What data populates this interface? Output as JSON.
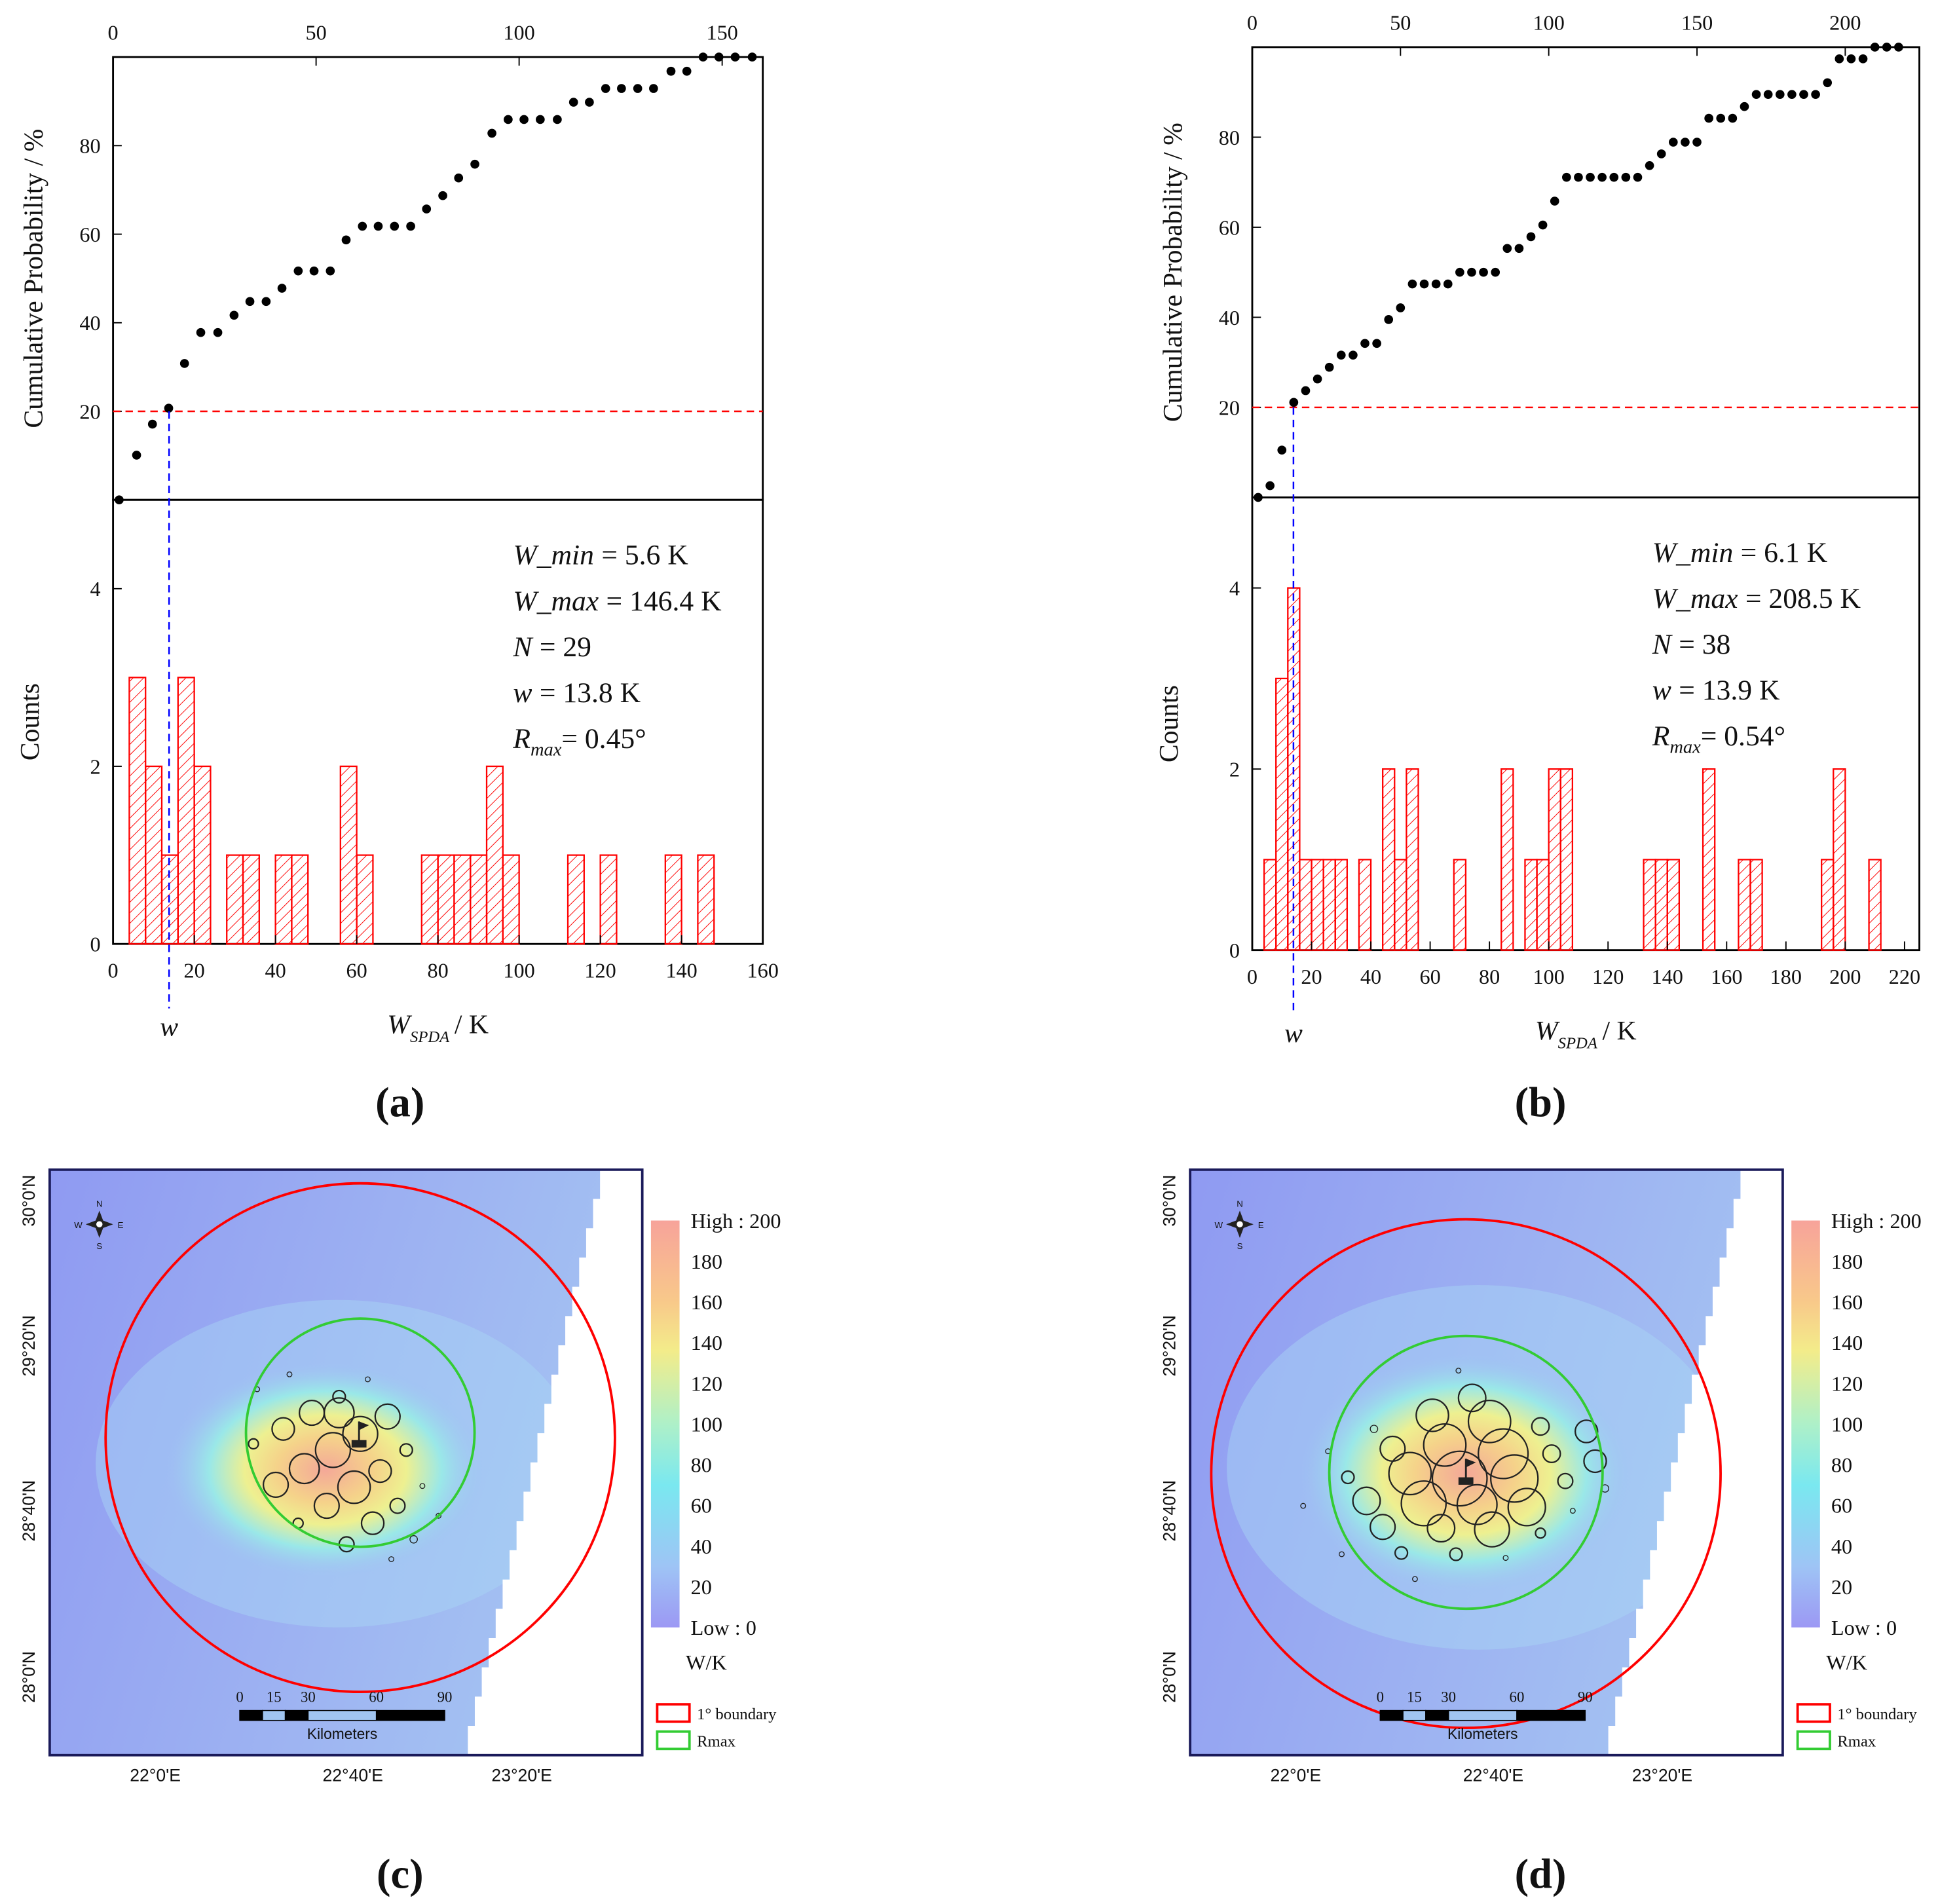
{
  "chart_data": [
    {
      "type": "scatter",
      "y_label": "Cumulative Probability / %",
      "color": "#000000",
      "x": [
        1.5,
        5.8,
        9.7,
        13.7,
        17.6,
        21.6,
        25.8,
        29.8,
        33.7,
        37.7,
        41.6,
        45.6,
        49.5,
        53.5,
        57.4,
        61.4,
        65.3,
        69.3,
        73.3,
        77.2,
        81.2,
        85.1,
        89.1,
        93.3,
        97.3,
        101.2,
        105.2,
        109.4,
        113.4,
        117.3,
        121.3,
        125.2,
        129.2,
        133.1,
        137.4,
        141.3,
        145.3,
        149.2,
        153.2,
        157.4
      ],
      "values": [
        0,
        10.1,
        17.1,
        20.7,
        30.8,
        37.8,
        37.8,
        41.7,
        44.8,
        44.8,
        47.8,
        51.7,
        51.7,
        51.7,
        58.7,
        61.8,
        61.8,
        61.8,
        61.8,
        65.7,
        68.7,
        72.7,
        75.8,
        82.8,
        85.9,
        85.9,
        85.9,
        85.9,
        89.8,
        89.8,
        92.9,
        92.9,
        92.9,
        92.9,
        96.8,
        96.8,
        100,
        100,
        100,
        100
      ],
      "xlim": [
        0,
        160
      ],
      "xticks": [
        0,
        50,
        100,
        150
      ],
      "ylim": [
        0,
        100
      ],
      "yticks": [
        20,
        40,
        60,
        80
      ],
      "reference_line": {
        "y": 20,
        "color": "#ff0000"
      }
    },
    {
      "type": "histogram",
      "y_label": "Counts",
      "x_label": [
        "W",
        "SPDA",
        "/ K"
      ],
      "color": "#ff0000",
      "bins": [
        4,
        8,
        12,
        16,
        20,
        24,
        28,
        32,
        36,
        40,
        44,
        48,
        52,
        56,
        60,
        64,
        68,
        72,
        76,
        80,
        84,
        88,
        92,
        96,
        100,
        104,
        108,
        112,
        116,
        120,
        124,
        128,
        132,
        136,
        140,
        144,
        148
      ],
      "values": [
        3,
        2,
        1,
        3,
        2,
        0,
        1,
        1,
        0,
        1,
        1,
        0,
        0,
        2,
        1,
        0,
        0,
        0,
        1,
        1,
        1,
        1,
        2,
        1,
        0,
        0,
        0,
        1,
        0,
        1,
        0,
        0,
        0,
        1,
        0,
        1
      ],
      "xlim": [
        0,
        160
      ],
      "xticks": [
        0,
        20,
        40,
        60,
        80,
        100,
        120,
        140,
        160
      ],
      "ylim": [
        0,
        5
      ],
      "yticks": [
        0,
        2,
        4
      ],
      "marker": {
        "x": 13.8,
        "label": "w",
        "color": "#0000ff"
      },
      "annotations": [
        [
          "W_min",
          "= 5.6 K"
        ],
        [
          "W_max",
          "= 146.4 K"
        ],
        [
          "N",
          "= 29"
        ],
        [
          "w",
          "= 13.8 K"
        ]
      ],
      "rmax": [
        "R",
        "max",
        "= 0.45°"
      ]
    },
    {
      "type": "scatter",
      "y_label": "Cumulative Probability / %",
      "color": "#000000",
      "x": [
        2,
        6,
        10,
        14,
        18,
        22,
        26,
        30,
        34,
        38,
        42,
        46,
        50,
        54,
        58,
        62,
        66,
        70,
        74,
        78,
        82,
        86,
        90,
        94,
        98,
        102,
        106,
        110,
        114,
        118,
        122,
        126,
        130,
        134,
        138,
        142,
        146,
        150,
        154,
        158,
        162,
        166,
        170,
        174,
        178,
        182,
        186,
        190,
        194,
        198,
        202,
        206,
        210,
        214,
        218
      ],
      "values": [
        0,
        2.6,
        10.5,
        21.1,
        23.7,
        26.3,
        28.9,
        31.6,
        31.6,
        34.2,
        34.2,
        39.5,
        42.1,
        47.4,
        47.4,
        47.4,
        47.4,
        50,
        50,
        50,
        50,
        55.3,
        55.3,
        57.9,
        60.5,
        65.8,
        71.1,
        71.1,
        71.1,
        71.1,
        71.1,
        71.1,
        71.1,
        73.7,
        76.3,
        78.9,
        78.9,
        78.9,
        84.2,
        84.2,
        84.2,
        86.8,
        89.5,
        89.5,
        89.5,
        89.5,
        89.5,
        89.5,
        92.1,
        97.4,
        97.4,
        97.4,
        100,
        100,
        100
      ],
      "xlim": [
        0,
        225
      ],
      "xticks": [
        0,
        50,
        100,
        150,
        200
      ],
      "ylim": [
        0,
        100
      ],
      "yticks": [
        20,
        40,
        60,
        80
      ],
      "reference_line": {
        "y": 20,
        "color": "#ff0000"
      }
    },
    {
      "type": "histogram",
      "y_label": "Counts",
      "x_label": [
        "W",
        "SPDA",
        "/ K"
      ],
      "color": "#ff0000",
      "bins": [
        4,
        8,
        12,
        16,
        20,
        24,
        28,
        32,
        36,
        40,
        44,
        48,
        52,
        56,
        60,
        64,
        68,
        72,
        76,
        80,
        84,
        88,
        92,
        96,
        100,
        104,
        108,
        112,
        116,
        120,
        124,
        128,
        132,
        136,
        140,
        144,
        148,
        152,
        156,
        160,
        164,
        168,
        172,
        176,
        180,
        184,
        188,
        192,
        196,
        200,
        204,
        208,
        212
      ],
      "values": [
        1,
        3,
        4,
        1,
        1,
        1,
        1,
        0,
        1,
        0,
        2,
        1,
        2,
        0,
        0,
        0,
        1,
        0,
        0,
        0,
        2,
        0,
        1,
        1,
        2,
        2,
        0,
        0,
        0,
        0,
        0,
        0,
        1,
        1,
        1,
        0,
        0,
        2,
        0,
        0,
        1,
        1,
        0,
        0,
        0,
        0,
        0,
        1,
        2,
        0,
        0,
        1
      ],
      "xlim": [
        0,
        225
      ],
      "xticks": [
        0,
        20,
        40,
        60,
        80,
        100,
        120,
        140,
        160,
        180,
        200,
        220
      ],
      "ylim": [
        0,
        5
      ],
      "yticks": [
        0,
        2,
        4
      ],
      "marker": {
        "x": 13.9,
        "label": "w",
        "color": "#0000ff"
      },
      "annotations": [
        [
          "W_min",
          "= 6.1 K"
        ],
        [
          "W_max",
          "= 208.5 K"
        ],
        [
          "N",
          "= 38"
        ],
        [
          "w",
          "= 13.9 K"
        ]
      ],
      "rmax": [
        "R",
        "max",
        "= 0.54°"
      ]
    }
  ],
  "maps": [
    {
      "lat_labels": [
        "30°0'N",
        "29°20'N",
        "28°40'N",
        "28°0'N"
      ],
      "lon_labels": [
        "22°0'E",
        "22°40'E",
        "23°20'E"
      ],
      "colorbar_high": "High : 200",
      "colorbar_low": "Low : 0",
      "clim": [
        0,
        200
      ],
      "colorbar_ticks": [
        180,
        160,
        140,
        120,
        100,
        80,
        60,
        40,
        20
      ],
      "unit": "W/K",
      "legend": [
        {
          "name": "1° boundary",
          "color": "#ff0000"
        },
        {
          "name": "Rmax",
          "color": "#33cc33"
        }
      ],
      "scale_labels": [
        0,
        15,
        30,
        60,
        90
      ],
      "scale_unit": "Kilometers",
      "compass": {
        "n": "N",
        "s": "S",
        "w": "W",
        "e": "E"
      }
    },
    {
      "lat_labels": [
        "30°0'N",
        "29°20'N",
        "28°40'N",
        "28°0'N"
      ],
      "lon_labels": [
        "22°0'E",
        "22°40'E",
        "23°20'E"
      ],
      "colorbar_high": "High : 200",
      "colorbar_low": "Low : 0",
      "clim": [
        0,
        200
      ],
      "colorbar_ticks": [
        180,
        160,
        140,
        120,
        100,
        80,
        60,
        40,
        20
      ],
      "unit": "W/K",
      "legend": [
        {
          "name": "1° boundary",
          "color": "#ff0000"
        },
        {
          "name": "Rmax",
          "color": "#33cc33"
        }
      ],
      "scale_labels": [
        0,
        15,
        30,
        60,
        90
      ],
      "scale_unit": "Kilometers",
      "compass": {
        "n": "N",
        "s": "S",
        "w": "W",
        "e": "E"
      }
    }
  ],
  "captions": [
    "(a)",
    "(b)",
    "(c)",
    "(d)"
  ]
}
